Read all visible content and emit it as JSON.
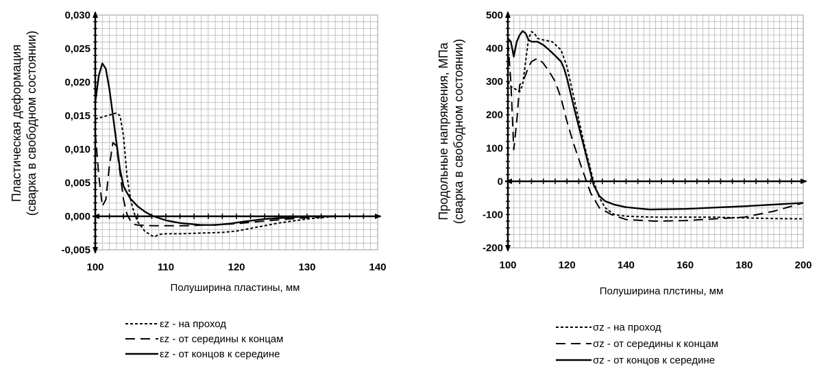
{
  "chart_data": [
    {
      "type": "line",
      "ylabel_line1": "Пластическая деформация",
      "ylabel_line2": "(сварка в свободном состоянии)",
      "xlabel": "Полуширина  пластины, мм",
      "xlim": [
        100,
        140
      ],
      "ylim": [
        -0.005,
        0.03
      ],
      "x_ticks": [
        "100",
        "110",
        "120",
        "130",
        "140"
      ],
      "y_ticks": [
        "-0,005",
        "0,000",
        "0,005",
        "0,010",
        "0,015",
        "0,020",
        "0,025",
        "0,030"
      ],
      "grid": true,
      "legend_position": "bottom",
      "series": [
        {
          "name": "εz - на проход",
          "style": "dotted",
          "x": [
            100,
            101,
            102,
            103,
            103.5,
            104,
            104.5,
            105,
            105.5,
            106,
            107,
            108,
            108.5,
            109,
            110,
            112,
            115,
            118,
            120,
            123,
            126,
            130,
            133,
            134
          ],
          "y": [
            0.0145,
            0.0148,
            0.0151,
            0.0154,
            0.015,
            0.012,
            0.006,
            0.0025,
            0.0005,
            -0.0008,
            -0.0022,
            -0.0029,
            -0.003,
            -0.0027,
            -0.0026,
            -0.0026,
            -0.0025,
            -0.0024,
            -0.0022,
            -0.0016,
            -0.001,
            -0.0004,
            -0.0001,
            0.0
          ]
        },
        {
          "name": "εz - от середины к концам",
          "style": "dashed",
          "x": [
            100,
            100.5,
            101,
            101.5,
            102,
            102.5,
            103,
            103.5,
            104,
            104.5,
            105,
            105.5,
            106,
            108,
            110,
            113,
            116,
            120,
            125,
            130,
            134
          ],
          "y": [
            0.0125,
            0.006,
            0.0015,
            0.0025,
            0.0075,
            0.011,
            0.0105,
            0.0065,
            0.0025,
            0.0003,
            -0.0007,
            -0.0012,
            -0.0013,
            -0.0014,
            -0.0014,
            -0.0014,
            -0.0013,
            -0.0011,
            -0.0006,
            -0.0002,
            0.0
          ]
        },
        {
          "name": "εz - от концов к середине",
          "style": "solid",
          "x": [
            100,
            100.5,
            101,
            101.5,
            102,
            102.5,
            103,
            103.5,
            104,
            104.5,
            105,
            106,
            107,
            108,
            110,
            112,
            115,
            117,
            119,
            121,
            124,
            127,
            130,
            134
          ],
          "y": [
            0.017,
            0.021,
            0.0228,
            0.022,
            0.019,
            0.015,
            0.011,
            0.007,
            0.0045,
            0.0035,
            0.0026,
            0.0015,
            0.0007,
            0.0001,
            -0.0006,
            -0.001,
            -0.0013,
            -0.0013,
            -0.0011,
            -0.0008,
            -0.0004,
            -0.0002,
            0.0,
            0.0
          ]
        }
      ]
    },
    {
      "type": "line",
      "ylabel_line1": "Продольные напряжения, МПа",
      "ylabel_line2": "(сварка в свободном состоянии)",
      "xlabel": "Полуширина  плстины, мм",
      "xlim": [
        100,
        200
      ],
      "ylim": [
        -200,
        500
      ],
      "x_ticks": [
        "100",
        "120",
        "140",
        "160",
        "180",
        "200"
      ],
      "y_ticks": [
        "-200",
        "-100",
        "0",
        "100",
        "200",
        "300",
        "400",
        "500"
      ],
      "grid": true,
      "legend_position": "bottom",
      "series": [
        {
          "name": "σz - на проход",
          "style": "dotted",
          "x": [
            100,
            101,
            102,
            103,
            104,
            105,
            106,
            107,
            108,
            109,
            110,
            112,
            115,
            118,
            120,
            123,
            126,
            129,
            131,
            133,
            136,
            140,
            150,
            160,
            170,
            180,
            190,
            200
          ],
          "y": [
            300,
            285,
            280,
            275,
            270,
            290,
            360,
            430,
            450,
            445,
            430,
            425,
            420,
            395,
            345,
            225,
            105,
            0,
            -50,
            -80,
            -100,
            -105,
            -108,
            -108,
            -108,
            -110,
            -112,
            -113
          ]
        },
        {
          "name": "σz - от середины к концам",
          "style": "dashed",
          "x": [
            100,
            101,
            102,
            103,
            104,
            105,
            106,
            107,
            108,
            110,
            112,
            114,
            116,
            118,
            120,
            122,
            125,
            128,
            131,
            135,
            140,
            150,
            160,
            170,
            180,
            190,
            200
          ],
          "y": [
            420,
            300,
            95,
            180,
            290,
            300,
            320,
            345,
            360,
            370,
            355,
            330,
            300,
            250,
            180,
            120,
            40,
            -35,
            -80,
            -100,
            -115,
            -120,
            -118,
            -113,
            -108,
            -90,
            -65
          ]
        },
        {
          "name": "σz - от концов к середине",
          "style": "solid",
          "x": [
            100,
            101,
            102,
            103,
            104,
            105,
            106,
            107,
            108,
            110,
            112,
            114,
            116,
            118,
            119,
            120,
            123,
            126,
            129,
            131,
            133,
            136,
            140,
            148,
            160,
            180,
            200
          ],
          "y": [
            430,
            420,
            375,
            420,
            440,
            452,
            445,
            425,
            420,
            420,
            410,
            395,
            378,
            360,
            340,
            310,
            200,
            95,
            -10,
            -45,
            -60,
            -70,
            -78,
            -85,
            -83,
            -75,
            -65
          ]
        }
      ]
    }
  ]
}
